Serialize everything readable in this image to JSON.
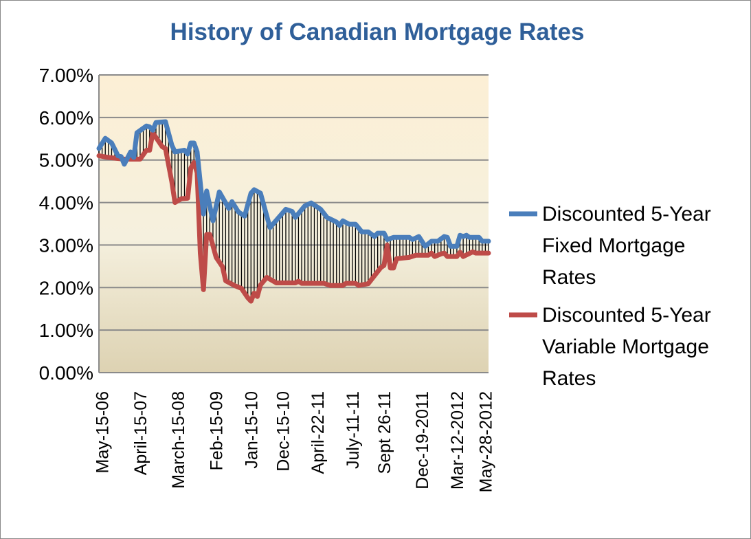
{
  "chart_data": {
    "type": "line",
    "title": "History of Canadian Mortgage Rates",
    "xlabel": "",
    "ylabel": "",
    "ylim": [
      0,
      7
    ],
    "y_ticks": [
      "0.00%",
      "1.00%",
      "2.00%",
      "3.00%",
      "4.00%",
      "5.00%",
      "6.00%",
      "7.00%"
    ],
    "x_range": [
      0,
      123
    ],
    "x_ticks": [
      {
        "index": 1,
        "label": "May-15-06"
      },
      {
        "index": 13,
        "label": "April-15-07"
      },
      {
        "index": 25,
        "label": "March-15-08"
      },
      {
        "index": 37,
        "label": "Feb-15-09"
      },
      {
        "index": 48,
        "label": "Jan-15-10"
      },
      {
        "index": 58,
        "label": "Dec-15-10"
      },
      {
        "index": 69,
        "label": "April-22-11"
      },
      {
        "index": 80,
        "label": "July-11-11"
      },
      {
        "index": 90,
        "label": "Sept 26-11"
      },
      {
        "index": 102,
        "label": "Dec-19-2011"
      },
      {
        "index": 113,
        "label": "Mar-12-2012"
      },
      {
        "index": 122,
        "label": "May-28-2012"
      }
    ],
    "grid": "horizontal",
    "legend_position": "right",
    "high_low_lines": true,
    "series": [
      {
        "name": "Discounted 5-Year Fixed Mortgage Rates",
        "color": "#4a7ebb",
        "points": [
          [
            0,
            5.27
          ],
          [
            2,
            5.51
          ],
          [
            4,
            5.4
          ],
          [
            6,
            5.1
          ],
          [
            7,
            5.08
          ],
          [
            8,
            4.9
          ],
          [
            10,
            5.19
          ],
          [
            11,
            5.06
          ],
          [
            12,
            5.64
          ],
          [
            15,
            5.8
          ],
          [
            16,
            5.78
          ],
          [
            17,
            5.7
          ],
          [
            18,
            5.88
          ],
          [
            21,
            5.9
          ],
          [
            23,
            5.35
          ],
          [
            24,
            5.19
          ],
          [
            27,
            5.23
          ],
          [
            28,
            5.14
          ],
          [
            29,
            5.4
          ],
          [
            30,
            5.4
          ],
          [
            31,
            5.19
          ],
          [
            33,
            3.73
          ],
          [
            34,
            4.27
          ],
          [
            36,
            3.57
          ],
          [
            38,
            4.25
          ],
          [
            41,
            3.86
          ],
          [
            42,
            4.02
          ],
          [
            44,
            3.78
          ],
          [
            46,
            3.68
          ],
          [
            48,
            4.22
          ],
          [
            49,
            4.3
          ],
          [
            51,
            4.22
          ],
          [
            54,
            3.41
          ],
          [
            59,
            3.84
          ],
          [
            61,
            3.79
          ],
          [
            62,
            3.65
          ],
          [
            65,
            3.92
          ],
          [
            67,
            3.99
          ],
          [
            70,
            3.84
          ],
          [
            72,
            3.65
          ],
          [
            75,
            3.54
          ],
          [
            76,
            3.46
          ],
          [
            77,
            3.57
          ],
          [
            79,
            3.49
          ],
          [
            81,
            3.49
          ],
          [
            83,
            3.31
          ],
          [
            85,
            3.31
          ],
          [
            87,
            3.2
          ],
          [
            88,
            3.28
          ],
          [
            90,
            3.28
          ],
          [
            91,
            3.13
          ],
          [
            93,
            3.18
          ],
          [
            98,
            3.18
          ],
          [
            99,
            3.13
          ],
          [
            101,
            3.2
          ],
          [
            103,
            2.97
          ],
          [
            105,
            3.09
          ],
          [
            107,
            3.09
          ],
          [
            109,
            3.2
          ],
          [
            110,
            3.18
          ],
          [
            111,
            2.97
          ],
          [
            113,
            2.97
          ],
          [
            114,
            3.23
          ],
          [
            115,
            3.2
          ],
          [
            116,
            3.23
          ],
          [
            117,
            3.18
          ],
          [
            120,
            3.18
          ],
          [
            121,
            3.09
          ],
          [
            123,
            3.09
          ]
        ]
      },
      {
        "name": "Discounted 5-Year Variable Mortgage Rates",
        "color": "#be4b48",
        "points": [
          [
            0,
            5.1
          ],
          [
            3,
            5.06
          ],
          [
            8,
            5.02
          ],
          [
            13,
            5.02
          ],
          [
            15,
            5.23
          ],
          [
            16,
            5.23
          ],
          [
            17,
            5.64
          ],
          [
            20,
            5.31
          ],
          [
            21,
            5.27
          ],
          [
            23,
            4.49
          ],
          [
            24,
            4.0
          ],
          [
            26,
            4.09
          ],
          [
            28,
            4.1
          ],
          [
            29,
            4.81
          ],
          [
            30,
            4.94
          ],
          [
            31,
            4.7
          ],
          [
            32,
            2.81
          ],
          [
            33,
            1.95
          ],
          [
            34,
            3.25
          ],
          [
            35,
            3.25
          ],
          [
            37,
            2.71
          ],
          [
            39,
            2.49
          ],
          [
            40,
            2.16
          ],
          [
            43,
            2.04
          ],
          [
            45,
            1.98
          ],
          [
            47,
            1.76
          ],
          [
            48,
            1.68
          ],
          [
            49,
            1.87
          ],
          [
            50,
            1.79
          ],
          [
            51,
            2.06
          ],
          [
            53,
            2.24
          ],
          [
            56,
            2.11
          ],
          [
            62,
            2.11
          ],
          [
            63,
            2.15
          ],
          [
            64,
            2.1
          ],
          [
            71,
            2.1
          ],
          [
            73,
            2.05
          ],
          [
            77,
            2.05
          ],
          [
            78,
            2.1
          ],
          [
            81,
            2.1
          ],
          [
            82,
            2.05
          ],
          [
            85,
            2.09
          ],
          [
            87,
            2.28
          ],
          [
            89,
            2.47
          ],
          [
            90,
            2.52
          ],
          [
            91,
            3.0
          ],
          [
            92,
            2.46
          ],
          [
            93,
            2.46
          ],
          [
            94,
            2.68
          ],
          [
            98,
            2.71
          ],
          [
            100,
            2.76
          ],
          [
            104,
            2.76
          ],
          [
            105,
            2.81
          ],
          [
            106,
            2.73
          ],
          [
            108,
            2.79
          ],
          [
            109,
            2.81
          ],
          [
            110,
            2.73
          ],
          [
            113,
            2.73
          ],
          [
            114,
            2.83
          ],
          [
            115,
            2.73
          ],
          [
            118,
            2.84
          ],
          [
            119,
            2.81
          ],
          [
            123,
            2.81
          ]
        ]
      }
    ],
    "legend": [
      {
        "lines": [
          "Discounted 5-Year",
          "Fixed Mortgage",
          "Rates"
        ]
      },
      {
        "lines": [
          "Discounted 5-Year",
          "Variable Mortgage",
          "Rates"
        ]
      }
    ]
  }
}
